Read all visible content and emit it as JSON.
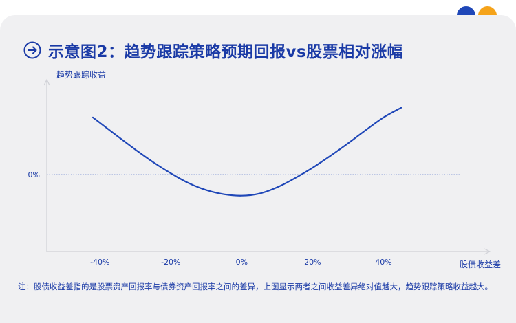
{
  "title": "示意图2：趋势跟踪策略预期回报vs股票相对涨幅",
  "note": "注：股债收益差指的是股票资产回报率与债券资产回报率之间的差异，上图显示两者之间收益差异绝对值越大，趋势跟踪策略收益越大。",
  "colors": {
    "accent": "#1a3aa6",
    "curve": "#1f47b8",
    "dot_blue": "#1f47b8",
    "dot_orange": "#f5a31a",
    "axis": "#cfd0d6"
  },
  "icons": {
    "title_icon": "arrow-circle-right-icon"
  },
  "chart_data": {
    "type": "line",
    "title": "",
    "xlabel": "股债收益差",
    "ylabel": "趋势跟踪收益",
    "x_ticks": [
      "-40%",
      "-20%",
      "0%",
      "20%",
      "40%"
    ],
    "x_tick_values": [
      -40,
      -20,
      0,
      20,
      40
    ],
    "y_ticks": [
      "0%"
    ],
    "reference_line": {
      "y": 0,
      "style": "dotted"
    },
    "series": [
      {
        "values_x": [
          -42,
          -35,
          -30,
          -25,
          -20,
          -15,
          -10,
          -5,
          0,
          5,
          10,
          15,
          20,
          25,
          30,
          35,
          40,
          45
        ],
        "values_y": [
          0.82,
          0.55,
          0.36,
          0.18,
          0.02,
          -0.12,
          -0.22,
          -0.28,
          -0.3,
          -0.27,
          -0.18,
          -0.05,
          0.1,
          0.27,
          0.45,
          0.64,
          0.82,
          0.96
        ]
      }
    ],
    "xlim": [
      -55,
      70
    ],
    "ylim": [
      -1.1,
      1.4
    ],
    "grid": false
  }
}
